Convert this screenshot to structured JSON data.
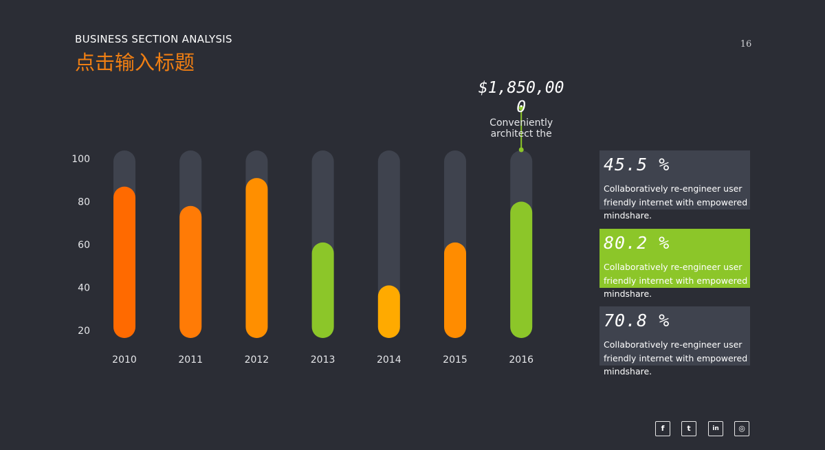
{
  "header": {
    "subtitle": "BUSINESS SECTION ANALYSIS",
    "title": "点击输入标题",
    "page_number": "16"
  },
  "colors": {
    "background": "#2b2d35",
    "track": "#3f434e",
    "accent_orange": "#f07f13",
    "accent_green": "#8cc629"
  },
  "chart_data": {
    "type": "bar",
    "categories": [
      "2010",
      "2011",
      "2012",
      "2013",
      "2014",
      "2015",
      "2016"
    ],
    "values": [
      87,
      78,
      91,
      61,
      41,
      61,
      80
    ],
    "bar_colors": [
      "#ff6a00",
      "#ff7b06",
      "#ff8f00",
      "#8cc629",
      "#ffaa00",
      "#ff8c00",
      "#8cc629"
    ],
    "ylim": [
      20,
      100
    ],
    "yticks": [
      20,
      40,
      60,
      80,
      100
    ],
    "background_track": true,
    "grid": false,
    "title": "",
    "xlabel": "",
    "ylabel": "",
    "callout": {
      "category": "2016",
      "value_line1": "$1,850,00",
      "value_line2": "0",
      "text_line1": "Conveniently",
      "text_line2": "architect the"
    }
  },
  "stats": [
    {
      "percent": "45.5 %",
      "line1": "Collaboratively re-engineer user",
      "line2": "friendly internet with empowered",
      "line3": "mindshare.",
      "style": "dark"
    },
    {
      "percent": "80.2 %",
      "line1": "Collaboratively re-engineer user",
      "line2": "friendly internet with empowered",
      "line3": "mindshare.",
      "style": "green"
    },
    {
      "percent": "70.8 %",
      "line1": "Collaboratively re-engineer user",
      "line2": "friendly internet with empowered",
      "line3": "mindshare.",
      "style": "dark"
    }
  ],
  "social": [
    {
      "icon": "facebook-icon",
      "glyph": "f"
    },
    {
      "icon": "twitter-icon",
      "glyph": "t"
    },
    {
      "icon": "linkedin-icon",
      "glyph": "in"
    },
    {
      "icon": "instagram-icon",
      "glyph": "◎"
    }
  ]
}
